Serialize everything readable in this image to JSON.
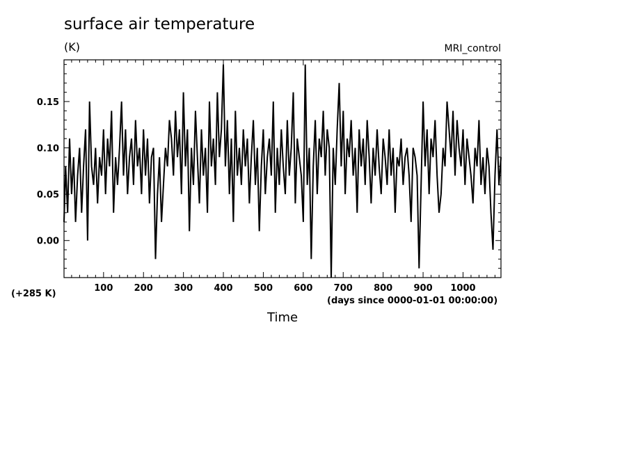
{
  "chart_data": {
    "type": "line",
    "title": "surface air temperature",
    "units": "(K)",
    "model_label": "MRI_control",
    "y_offset_label": "(+285 K)",
    "x_units_label": "(days since 0000-01-01 00:00:00)",
    "xlabel": "Time",
    "xlim": [
      1,
      1095
    ],
    "ylim": [
      -0.04,
      0.195
    ],
    "x_ticks": [
      100,
      200,
      300,
      400,
      500,
      600,
      700,
      800,
      900,
      1000
    ],
    "y_ticks": [
      0.0,
      0.05,
      0.1,
      0.15
    ],
    "x_tick_labels": [
      "100",
      "200",
      "300",
      "400",
      "500",
      "600",
      "700",
      "800",
      "900",
      "1000"
    ],
    "y_tick_labels": [
      "0.00",
      "0.05",
      "0.10",
      "0.15"
    ],
    "grid": false,
    "series": [
      {
        "color": "#000000",
        "x": [
          1,
          5,
          10,
          15,
          20,
          25,
          30,
          35,
          40,
          45,
          50,
          55,
          60,
          65,
          70,
          75,
          80,
          85,
          90,
          95,
          100,
          105,
          110,
          115,
          120,
          125,
          130,
          135,
          140,
          145,
          150,
          155,
          160,
          165,
          170,
          175,
          180,
          185,
          190,
          195,
          200,
          205,
          210,
          215,
          220,
          225,
          230,
          235,
          240,
          245,
          250,
          255,
          260,
          265,
          270,
          275,
          280,
          285,
          290,
          295,
          300,
          305,
          310,
          315,
          320,
          325,
          330,
          335,
          340,
          345,
          350,
          355,
          360,
          365,
          370,
          375,
          380,
          385,
          390,
          395,
          400,
          405,
          410,
          415,
          420,
          425,
          430,
          435,
          440,
          445,
          450,
          455,
          460,
          465,
          470,
          475,
          480,
          485,
          490,
          495,
          500,
          505,
          510,
          515,
          520,
          525,
          530,
          535,
          540,
          545,
          550,
          555,
          560,
          565,
          570,
          575,
          580,
          585,
          590,
          595,
          600,
          605,
          610,
          615,
          620,
          625,
          630,
          635,
          640,
          645,
          650,
          655,
          660,
          665,
          670,
          675,
          680,
          685,
          690,
          695,
          700,
          705,
          710,
          715,
          720,
          725,
          730,
          735,
          740,
          745,
          750,
          755,
          760,
          765,
          770,
          775,
          780,
          785,
          790,
          795,
          800,
          805,
          810,
          815,
          820,
          825,
          830,
          835,
          840,
          845,
          850,
          855,
          860,
          865,
          870,
          875,
          880,
          885,
          890,
          895,
          900,
          905,
          910,
          915,
          920,
          925,
          930,
          935,
          940,
          945,
          950,
          955,
          960,
          965,
          970,
          975,
          980,
          985,
          990,
          995,
          1000,
          1005,
          1010,
          1015,
          1020,
          1025,
          1030,
          1035,
          1040,
          1045,
          1050,
          1055,
          1060,
          1065,
          1070,
          1075,
          1080,
          1085,
          1090,
          1095
        ],
        "y": [
          0.02,
          0.08,
          0.03,
          0.11,
          0.05,
          0.09,
          0.02,
          0.07,
          0.1,
          0.03,
          0.08,
          0.12,
          0.0,
          0.15,
          0.08,
          0.06,
          0.1,
          0.04,
          0.09,
          0.07,
          0.12,
          0.05,
          0.11,
          0.08,
          0.14,
          0.03,
          0.09,
          0.06,
          0.1,
          0.15,
          0.07,
          0.12,
          0.05,
          0.09,
          0.11,
          0.06,
          0.13,
          0.08,
          0.1,
          0.05,
          0.12,
          0.07,
          0.11,
          0.04,
          0.09,
          0.1,
          -0.02,
          0.05,
          0.09,
          0.02,
          0.06,
          0.1,
          0.08,
          0.13,
          0.11,
          0.07,
          0.14,
          0.09,
          0.12,
          0.05,
          0.16,
          0.08,
          0.12,
          0.01,
          0.1,
          0.06,
          0.14,
          0.09,
          0.04,
          0.12,
          0.07,
          0.1,
          0.03,
          0.15,
          0.08,
          0.11,
          0.06,
          0.16,
          0.09,
          0.12,
          0.19,
          0.08,
          0.13,
          0.05,
          0.11,
          0.02,
          0.14,
          0.07,
          0.1,
          0.06,
          0.12,
          0.08,
          0.11,
          0.04,
          0.09,
          0.13,
          0.06,
          0.1,
          0.01,
          0.08,
          0.12,
          0.05,
          0.09,
          0.11,
          0.07,
          0.15,
          0.03,
          0.1,
          0.06,
          0.12,
          0.08,
          0.05,
          0.13,
          0.07,
          0.1,
          0.16,
          0.04,
          0.11,
          0.09,
          0.07,
          0.02,
          0.19,
          0.06,
          0.1,
          -0.02,
          0.08,
          0.13,
          0.05,
          0.11,
          0.09,
          0.14,
          0.07,
          0.12,
          0.1,
          -0.04,
          0.1,
          0.06,
          0.12,
          0.17,
          0.08,
          0.14,
          0.05,
          0.11,
          0.09,
          0.13,
          0.07,
          0.1,
          0.03,
          0.12,
          0.08,
          0.11,
          0.06,
          0.13,
          0.09,
          0.04,
          0.1,
          0.07,
          0.12,
          0.08,
          0.05,
          0.11,
          0.09,
          0.06,
          0.12,
          0.07,
          0.1,
          0.03,
          0.09,
          0.08,
          0.11,
          0.06,
          0.09,
          0.1,
          0.07,
          0.02,
          0.1,
          0.09,
          0.07,
          -0.03,
          0.06,
          0.15,
          0.08,
          0.12,
          0.05,
          0.11,
          0.09,
          0.13,
          0.07,
          0.03,
          0.05,
          0.1,
          0.08,
          0.15,
          0.12,
          0.09,
          0.14,
          0.07,
          0.13,
          0.1,
          0.08,
          0.12,
          0.06,
          0.11,
          0.09,
          0.07,
          0.04,
          0.1,
          0.08,
          0.13,
          0.06,
          0.09,
          0.05,
          0.1,
          0.08,
          0.03,
          -0.01,
          0.07,
          0.12,
          0.06,
          0.09
        ]
      }
    ]
  }
}
